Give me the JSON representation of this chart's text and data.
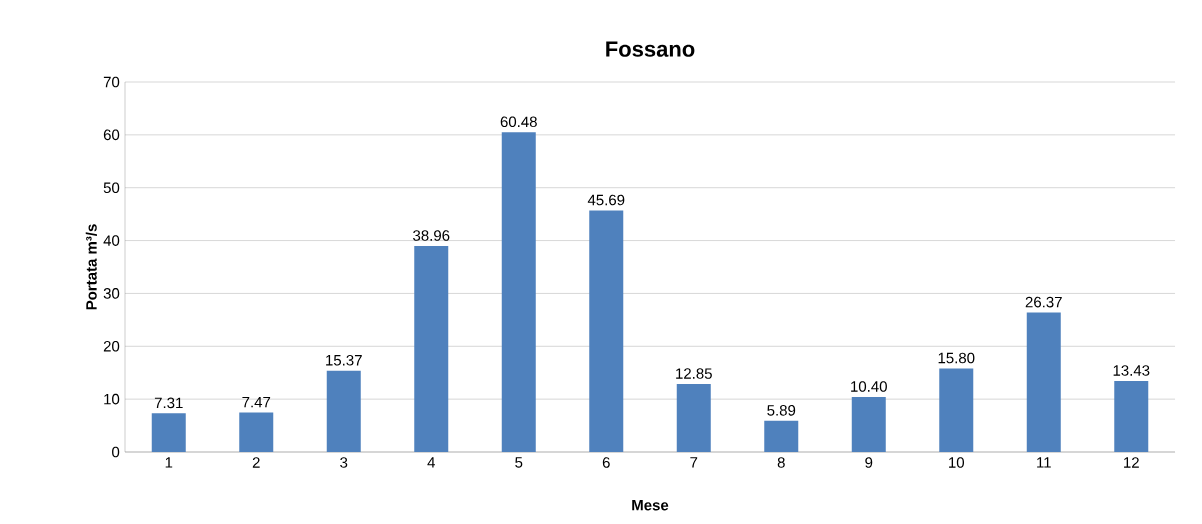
{
  "chart_data": {
    "type": "bar",
    "title": "Fossano",
    "xlabel": "Mese",
    "ylabel": "Portata m³/s",
    "categories": [
      "1",
      "2",
      "3",
      "4",
      "5",
      "6",
      "7",
      "8",
      "9",
      "10",
      "11",
      "12"
    ],
    "values": [
      7.31,
      7.47,
      15.37,
      38.96,
      60.48,
      45.69,
      12.85,
      5.89,
      10.4,
      15.8,
      26.37,
      13.43
    ],
    "value_labels": [
      "7.31",
      "7.47",
      "15.37",
      "38.96",
      "60.48",
      "45.69",
      "12.85",
      "5.89",
      "10.40",
      "15.80",
      "26.37",
      "13.43"
    ],
    "color": "#4f81bd",
    "ylim": [
      0,
      70
    ],
    "yticks": [
      0,
      10,
      20,
      30,
      40,
      50,
      60,
      70
    ],
    "grid": "y"
  }
}
